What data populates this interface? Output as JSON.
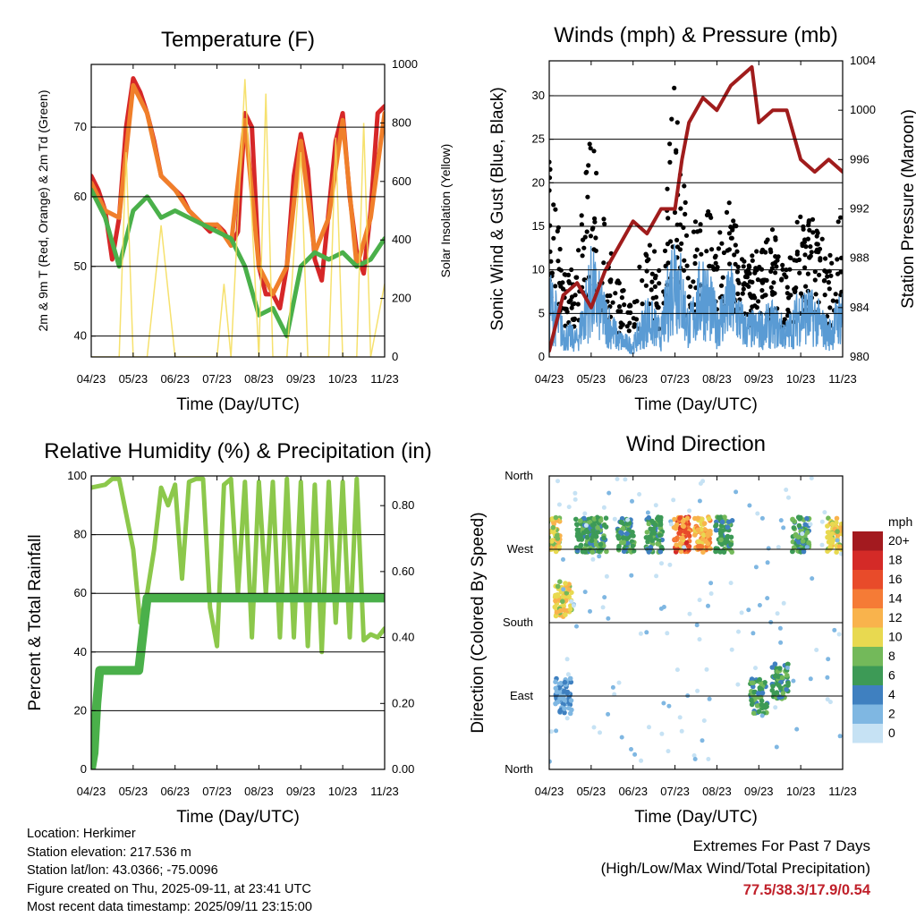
{
  "chart_data": [
    {
      "type": "line",
      "title": "Temperature (F)",
      "xlabel": "Time (Day/UTC)",
      "ylabel": "2m & 9m T (Red, Orange) & 2m Td (Green)",
      "y2label": "Solar Insolation (Yellow)",
      "x_ticks": [
        "04/23",
        "05/23",
        "06/23",
        "07/23",
        "08/23",
        "09/23",
        "10/23",
        "11/23"
      ],
      "ylim": [
        37,
        79
      ],
      "y_ticks": [
        40,
        50,
        60,
        70
      ],
      "y2lim": [
        0,
        1000
      ],
      "y2_ticks": [
        0,
        200,
        400,
        600,
        800,
        1000
      ],
      "grid": true,
      "series": [
        {
          "color": "#d62728",
          "x": [
            4.0,
            4.5,
            5.0,
            5.5,
            6.0,
            6.5,
            7.0,
            7.5,
            8.0,
            8.5,
            9.0,
            9.5,
            10.0,
            10.5,
            11.0,
            11.5,
            12.0,
            12.5,
            13.0,
            13.5,
            14.0,
            14.5,
            15.0,
            15.5,
            16.0,
            16.5,
            17.0,
            17.5,
            18.0,
            18.5,
            19.0,
            19.5,
            20.0,
            20.5,
            21.0,
            21.5,
            22.0,
            22.5,
            23.0,
            23.5,
            24.0,
            24.5,
            25.0
          ],
          "y": [
            63,
            61,
            58,
            51,
            57,
            70,
            77,
            75,
            72,
            68,
            63,
            62,
            61,
            60,
            58,
            57,
            56,
            55,
            56,
            55,
            53,
            55,
            72,
            70,
            50,
            46,
            46,
            44,
            50,
            63,
            69,
            64,
            51,
            48,
            58,
            68,
            72,
            60,
            52,
            49,
            58,
            72,
            73
          ]
        },
        {
          "color": "#f07f2a",
          "x": [
            4.0,
            5.0,
            6.0,
            7.0,
            8.0,
            9.0,
            10.0,
            11.0,
            12.0,
            13.0,
            14.0,
            15.0,
            16.0,
            17.0,
            18.0,
            19.0,
            20.0,
            21.0,
            22.0,
            23.0,
            24.0,
            25.0
          ],
          "y": [
            62,
            58,
            57,
            76,
            72,
            63,
            61,
            58,
            56,
            56,
            53,
            71,
            50,
            46,
            50,
            68,
            52,
            57,
            71,
            50,
            57,
            72
          ]
        },
        {
          "color": "#4ab04a",
          "x": [
            4.0,
            5.0,
            6.0,
            7.0,
            8.0,
            9.0,
            10.0,
            11.0,
            12.0,
            13.0,
            14.0,
            15.0,
            16.0,
            17.0,
            18.0,
            19.0,
            20.0,
            21.0,
            22.0,
            23.0,
            24.0,
            25.0
          ],
          "y": [
            61,
            57,
            50,
            58,
            60,
            57,
            58,
            57,
            56,
            55,
            54,
            50,
            43,
            44,
            40,
            50,
            52,
            51,
            52,
            50,
            51,
            54
          ]
        },
        {
          "color": "#f5dc55",
          "x": [
            4.0,
            5.0,
            6.0,
            6.5,
            7.0,
            8.0,
            9.0,
            10.0,
            11.0,
            12.0,
            13.0,
            13.5,
            14.0,
            15.0,
            16.0,
            16.5,
            17.0,
            18.0,
            19.0,
            19.5,
            20.0,
            21.0,
            21.5,
            22.0,
            23.0,
            23.5,
            24.0,
            25.0
          ],
          "y2": [
            0,
            0,
            0,
            700,
            0,
            0,
            450,
            0,
            0,
            0,
            0,
            250,
            0,
            950,
            0,
            900,
            0,
            0,
            700,
            0,
            0,
            0,
            750,
            0,
            0,
            800,
            0,
            250
          ]
        }
      ]
    },
    {
      "type": "line",
      "title": "Winds (mph) & Pressure (mb)",
      "xlabel": "Time (Day/UTC)",
      "ylabel": "Sonic Wind & Gust (Blue, Black)",
      "y2label": "Station Pressure (Maroon)",
      "x_ticks": [
        "04/23",
        "05/23",
        "06/23",
        "07/23",
        "08/23",
        "09/23",
        "10/23",
        "11/23"
      ],
      "ylim": [
        0,
        34
      ],
      "y_ticks": [
        0,
        5,
        10,
        15,
        20,
        25,
        30
      ],
      "y2lim": [
        980,
        1004
      ],
      "y2_ticks": [
        980,
        984,
        988,
        992,
        996,
        1000,
        1004
      ],
      "grid": true,
      "series": [
        {
          "color": "#000000",
          "x": [
            4.0,
            5.0,
            6.0,
            7.0,
            8.0,
            9.0,
            10.0,
            11.0,
            12.0,
            13.0,
            14.0,
            15.0,
            16.0,
            17.0,
            18.0,
            19.0,
            20.0,
            21.0,
            22.0,
            23.0,
            24.0,
            25.0
          ],
          "y": [
            19,
            9,
            10,
            22,
            12,
            7,
            6,
            12,
            8,
            27,
            10,
            18,
            11,
            15,
            9,
            10,
            12,
            8,
            14,
            13,
            9,
            14
          ]
        },
        {
          "color": "#5a9bd4",
          "x": [
            4.0,
            5.0,
            6.0,
            7.0,
            8.0,
            9.0,
            10.0,
            11.0,
            12.0,
            13.0,
            14.0,
            15.0,
            16.0,
            17.0,
            18.0,
            19.0,
            20.0,
            21.0,
            22.0,
            23.0,
            24.0,
            25.0
          ],
          "y": [
            10,
            4,
            3,
            12,
            7,
            3,
            2,
            7,
            4,
            16,
            5,
            12,
            6,
            10,
            5,
            5,
            6,
            4,
            8,
            7,
            4,
            8
          ]
        },
        {
          "color": "#a01c1c",
          "x": [
            4.0,
            5.0,
            6.0,
            7.0,
            8.0,
            9.0,
            10.0,
            11.0,
            12.0,
            13.0,
            13.5,
            14.0,
            15.0,
            16.0,
            17.0,
            18.0,
            18.5,
            19.0,
            20.0,
            21.0,
            22.0,
            23.0,
            24.0,
            25.0
          ],
          "y2": [
            980.5,
            985,
            986,
            984,
            987,
            989,
            991,
            990,
            992,
            992,
            996,
            999,
            1001,
            1000,
            1002,
            1003,
            1003.5,
            999,
            1000,
            1000,
            996,
            995,
            996,
            995
          ]
        }
      ]
    },
    {
      "type": "line",
      "title": "Relative Humidity (%) & Precipitation (in)",
      "xlabel": "Time (Day/UTC)",
      "ylabel": "Percent & Total Rainfall",
      "x_ticks": [
        "04/23",
        "05/23",
        "06/23",
        "07/23",
        "08/23",
        "09/23",
        "10/23",
        "11/23"
      ],
      "ylim": [
        0,
        100
      ],
      "y_ticks": [
        0,
        20,
        40,
        60,
        80,
        100
      ],
      "y2lim": [
        0,
        0.89
      ],
      "y2_ticks": [
        "0.00",
        "0.20",
        "0.40",
        "0.60",
        "0.80"
      ],
      "grid": true,
      "series": [
        {
          "color": "#8cc84b",
          "x": [
            4.0,
            5.0,
            5.5,
            6.0,
            7.0,
            7.5,
            8.0,
            8.5,
            9.0,
            9.5,
            10.0,
            10.5,
            11.0,
            11.5,
            12.0,
            12.5,
            13.0,
            13.5,
            14.0,
            14.5,
            15.0,
            15.5,
            16.0,
            16.5,
            17.0,
            17.5,
            18.0,
            18.5,
            19.0,
            19.5,
            20.0,
            20.5,
            21.0,
            21.5,
            22.0,
            22.5,
            23.0,
            23.5,
            24.0,
            24.5,
            25.0
          ],
          "y": [
            96,
            97,
            99,
            99,
            75,
            50,
            60,
            75,
            96,
            90,
            97,
            65,
            98,
            99,
            99,
            55,
            42,
            97,
            99,
            60,
            98,
            45,
            98,
            60,
            98,
            45,
            99,
            45,
            98,
            42,
            97,
            40,
            98,
            50,
            98,
            45,
            99,
            44,
            46,
            45,
            48
          ]
        },
        {
          "color": "#4ab04a",
          "x": [
            4.0,
            4.2,
            4.4,
            4.6,
            6.0,
            6.4,
            6.6,
            7.0,
            7.4,
            7.8,
            8.0,
            8.4,
            25.0
          ],
          "y2": [
            0.0,
            0.05,
            0.2,
            0.3,
            0.3,
            0.3,
            0.3,
            0.3,
            0.3,
            0.45,
            0.52,
            0.52,
            0.52
          ]
        }
      ]
    },
    {
      "type": "scatter",
      "title": "Wind Direction",
      "xlabel": "Time (Day/UTC)",
      "ylabel": "Direction (Colored By Speed)",
      "x_ticks": [
        "04/23",
        "05/23",
        "06/23",
        "07/23",
        "08/23",
        "09/23",
        "10/23",
        "11/23"
      ],
      "y_ticks": [
        "North",
        "East",
        "South",
        "West",
        "North"
      ],
      "legend": {
        "position": "right",
        "title": "mph",
        "labels": [
          "20+",
          "18",
          "16",
          "14",
          "12",
          "10",
          "8",
          "6",
          "4",
          "2",
          "0"
        ],
        "colors": [
          "#a31a1f",
          "#d42a27",
          "#e84b2a",
          "#f57b36",
          "#f9b34c",
          "#e8d950",
          "#73b95a",
          "#3d9a56",
          "#3f80c0",
          "#7fb7e2",
          "#c6e2f4"
        ]
      },
      "clusters": [
        {
          "x": 4.2,
          "dir": "W-NW",
          "speed": "8-12"
        },
        {
          "x": 5.0,
          "dir": "S-SW",
          "speed": "8-12"
        },
        {
          "x": 5.0,
          "dir": "E",
          "speed": "2-4"
        },
        {
          "x": 6.5,
          "dir": "W-NW",
          "speed": "4-8"
        },
        {
          "x": 7.5,
          "dir": "W-NW",
          "speed": "4-8"
        },
        {
          "x": 9.5,
          "dir": "W-NW",
          "speed": "4-8"
        },
        {
          "x": 11.5,
          "dir": "W-NW",
          "speed": "4-8"
        },
        {
          "x": 13.5,
          "dir": "W-NW",
          "speed": "10-18"
        },
        {
          "x": 15.0,
          "dir": "W-NW",
          "speed": "10-14"
        },
        {
          "x": 16.5,
          "dir": "W-NW",
          "speed": "4-8"
        },
        {
          "x": 19.0,
          "dir": "E",
          "speed": "4-8"
        },
        {
          "x": 20.5,
          "dir": "E-SE",
          "speed": "4-8"
        },
        {
          "x": 22.0,
          "dir": "W-NW",
          "speed": "4-8"
        },
        {
          "x": 24.5,
          "dir": "W-NW",
          "speed": "8-12"
        }
      ]
    }
  ],
  "footer": {
    "location": "Location: Herkimer",
    "elevation": "Station elevation: 217.536 m",
    "latlon": "Station lat/lon: 43.0366; -75.0096",
    "created": "Figure created on Thu, 2025-09-11, at 23:41 UTC",
    "recent": "Most recent data timestamp: 2025/09/11 23:15:00"
  },
  "extremes": {
    "title": "Extremes For Past 7 Days",
    "subtitle": "(High/Low/Max Wind/Total Precipitation)",
    "values": "77.5/38.3/17.9/0.54"
  }
}
